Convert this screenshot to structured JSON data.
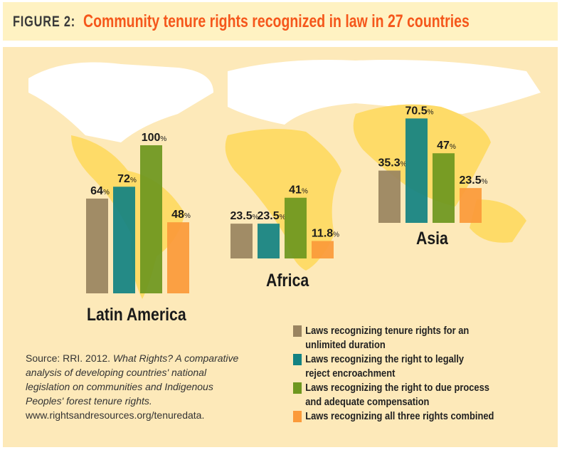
{
  "header": {
    "figure": "FIGURE 2:",
    "title": "Community tenure rights recognized in law in 27 countries"
  },
  "chart_data": {
    "type": "bar",
    "title": "Community tenure rights recognized in law in 27 countries",
    "categories": [
      "Latin America",
      "Africa",
      "Asia"
    ],
    "unit": "%",
    "ylim": [
      0,
      100
    ],
    "series": [
      {
        "name": "Laws recognizing tenure rights for an unlimited duration",
        "color": "#9a8460",
        "values": [
          64,
          23.5,
          35.3
        ]
      },
      {
        "name": "Laws recognizing the right to legally reject encroachment",
        "color": "#138282",
        "values": [
          72,
          23.5,
          70.5
        ]
      },
      {
        "name": "Laws recognizing the right to due process and adequate compensation",
        "color": "#6e971f",
        "values": [
          100,
          41,
          47
        ]
      },
      {
        "name": "Laws recognizing all three rights combined",
        "color": "#fb9a3a",
        "values": [
          48,
          11.8,
          23.5
        ]
      }
    ],
    "value_labels": [
      [
        "64",
        "72",
        "100",
        "48"
      ],
      [
        "23.5",
        "23.5",
        "41",
        "11.8"
      ],
      [
        "35.3",
        "70.5",
        "47",
        "23.5"
      ]
    ]
  },
  "legend": [
    {
      "line1": "Laws recognizing tenure rights for an",
      "line2": "unlimited duration"
    },
    {
      "line1": "Laws recognizing the right to legally",
      "line2": "reject encroachment"
    },
    {
      "line1": "Laws recognizing the right to due process",
      "line2": "and adequate compensation"
    },
    {
      "line1": "Laws recognizing all three rights combined",
      "line2": ""
    }
  ],
  "source": {
    "prefix": "Source: RRI. 2012. ",
    "italic": "What Rights? A comparative analysis of developing countries' national legislation on communities and Indigenous Peoples' forest tenure rights.",
    "url": "www.rightsandresources.org/tenuredata."
  }
}
